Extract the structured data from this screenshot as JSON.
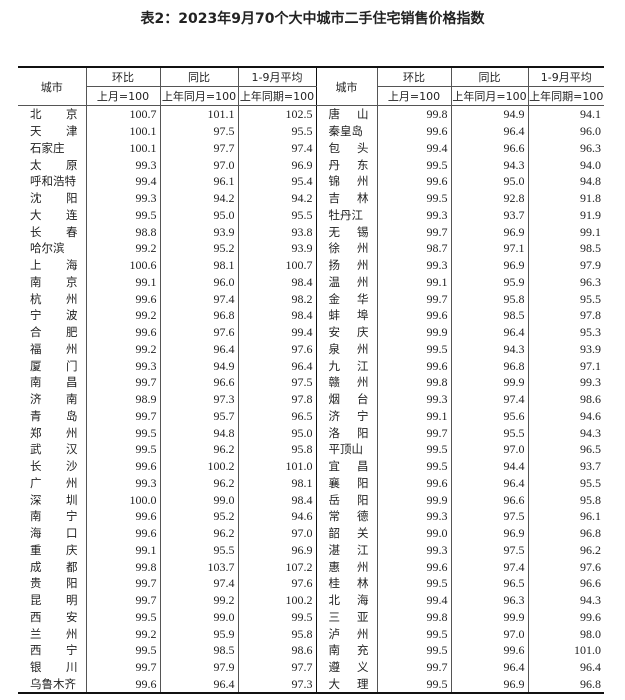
{
  "title": "表2：2023年9月70个大中城市二手住宅销售价格指数",
  "header": {
    "city": "城市",
    "mom": "环比",
    "yoy": "同比",
    "avg": "1-9月平均",
    "mom_base": "上月=100",
    "yoy_base": "上年同月=100",
    "avg_base": "上年同期=100"
  },
  "rows": [
    [
      [
        "北京",
        "100.7",
        "101.1",
        "102.5"
      ],
      [
        "唐山",
        "99.8",
        "94.9",
        "94.1"
      ]
    ],
    [
      [
        "天津",
        "100.1",
        "97.5",
        "95.5"
      ],
      [
        "秦皇岛",
        "99.6",
        "96.4",
        "96.0"
      ]
    ],
    [
      [
        "石家庄",
        "100.1",
        "97.7",
        "97.4"
      ],
      [
        "包头",
        "99.4",
        "96.6",
        "96.3"
      ]
    ],
    [
      [
        "太原",
        "99.3",
        "97.0",
        "96.9"
      ],
      [
        "丹东",
        "99.5",
        "94.3",
        "94.0"
      ]
    ],
    [
      [
        "呼和浩特",
        "99.4",
        "96.1",
        "95.4"
      ],
      [
        "锦州",
        "99.6",
        "95.0",
        "94.8"
      ]
    ],
    [
      [
        "沈阳",
        "99.3",
        "94.2",
        "94.2"
      ],
      [
        "吉林",
        "99.5",
        "92.8",
        "91.8"
      ]
    ],
    [
      [
        "大连",
        "99.5",
        "95.0",
        "95.5"
      ],
      [
        "牡丹江",
        "99.3",
        "93.7",
        "91.9"
      ]
    ],
    [
      [
        "长春",
        "98.8",
        "93.9",
        "93.8"
      ],
      [
        "无锡",
        "99.7",
        "96.9",
        "99.1"
      ]
    ],
    [
      [
        "哈尔滨",
        "99.2",
        "95.2",
        "93.9"
      ],
      [
        "徐州",
        "98.7",
        "97.1",
        "98.5"
      ]
    ],
    [
      [
        "上海",
        "100.6",
        "98.1",
        "100.7"
      ],
      [
        "扬州",
        "99.3",
        "96.9",
        "97.9"
      ]
    ],
    [
      [
        "南京",
        "99.1",
        "96.0",
        "98.4"
      ],
      [
        "温州",
        "99.1",
        "95.9",
        "96.3"
      ]
    ],
    [
      [
        "杭州",
        "99.6",
        "97.4",
        "98.2"
      ],
      [
        "金华",
        "99.7",
        "95.8",
        "95.5"
      ]
    ],
    [
      [
        "宁波",
        "99.2",
        "96.8",
        "98.4"
      ],
      [
        "蚌埠",
        "99.6",
        "98.5",
        "97.8"
      ]
    ],
    [
      [
        "合肥",
        "99.6",
        "97.6",
        "99.4"
      ],
      [
        "安庆",
        "99.9",
        "96.4",
        "95.3"
      ]
    ],
    [
      [
        "福州",
        "99.2",
        "96.4",
        "97.6"
      ],
      [
        "泉州",
        "99.5",
        "94.3",
        "93.9"
      ]
    ],
    [
      [
        "厦门",
        "99.3",
        "94.9",
        "96.4"
      ],
      [
        "九江",
        "99.6",
        "96.8",
        "97.1"
      ]
    ],
    [
      [
        "南昌",
        "99.7",
        "96.6",
        "97.5"
      ],
      [
        "赣州",
        "99.8",
        "99.9",
        "99.3"
      ]
    ],
    [
      [
        "济南",
        "98.9",
        "97.3",
        "97.8"
      ],
      [
        "烟台",
        "99.3",
        "97.4",
        "98.6"
      ]
    ],
    [
      [
        "青岛",
        "99.7",
        "95.7",
        "96.5"
      ],
      [
        "济宁",
        "99.1",
        "95.6",
        "94.6"
      ]
    ],
    [
      [
        "郑州",
        "99.5",
        "94.8",
        "95.0"
      ],
      [
        "洛阳",
        "99.7",
        "95.5",
        "94.3"
      ]
    ],
    [
      [
        "武汉",
        "99.5",
        "96.2",
        "95.8"
      ],
      [
        "平顶山",
        "99.5",
        "97.0",
        "96.5"
      ]
    ],
    [
      [
        "长沙",
        "99.6",
        "100.2",
        "101.0"
      ],
      [
        "宜昌",
        "99.5",
        "94.4",
        "93.7"
      ]
    ],
    [
      [
        "广州",
        "99.3",
        "96.2",
        "98.1"
      ],
      [
        "襄阳",
        "99.6",
        "96.4",
        "95.5"
      ]
    ],
    [
      [
        "深圳",
        "100.0",
        "99.0",
        "98.4"
      ],
      [
        "岳阳",
        "99.9",
        "96.6",
        "95.8"
      ]
    ],
    [
      [
        "南宁",
        "99.6",
        "95.2",
        "94.6"
      ],
      [
        "常德",
        "99.3",
        "97.5",
        "96.1"
      ]
    ],
    [
      [
        "海口",
        "99.6",
        "96.2",
        "97.0"
      ],
      [
        "韶关",
        "99.0",
        "96.9",
        "96.8"
      ]
    ],
    [
      [
        "重庆",
        "99.1",
        "95.5",
        "96.9"
      ],
      [
        "湛江",
        "99.3",
        "97.5",
        "96.2"
      ]
    ],
    [
      [
        "成都",
        "99.8",
        "103.7",
        "107.2"
      ],
      [
        "惠州",
        "99.6",
        "97.4",
        "97.6"
      ]
    ],
    [
      [
        "贵阳",
        "99.7",
        "97.4",
        "97.6"
      ],
      [
        "桂林",
        "99.5",
        "96.5",
        "96.6"
      ]
    ],
    [
      [
        "昆明",
        "99.7",
        "99.2",
        "100.2"
      ],
      [
        "北海",
        "99.4",
        "96.3",
        "94.3"
      ]
    ],
    [
      [
        "西安",
        "99.5",
        "99.0",
        "99.5"
      ],
      [
        "三亚",
        "99.8",
        "99.9",
        "99.6"
      ]
    ],
    [
      [
        "兰州",
        "99.2",
        "95.9",
        "95.8"
      ],
      [
        "泸州",
        "99.5",
        "97.0",
        "98.0"
      ]
    ],
    [
      [
        "西宁",
        "99.5",
        "98.5",
        "98.6"
      ],
      [
        "南充",
        "99.5",
        "99.6",
        "101.0"
      ]
    ],
    [
      [
        "银川",
        "99.7",
        "97.9",
        "97.7"
      ],
      [
        "遵义",
        "99.7",
        "96.4",
        "96.4"
      ]
    ],
    [
      [
        "乌鲁木齐",
        "99.6",
        "96.4",
        "97.3"
      ],
      [
        "大理",
        "99.5",
        "96.9",
        "96.8"
      ]
    ]
  ]
}
